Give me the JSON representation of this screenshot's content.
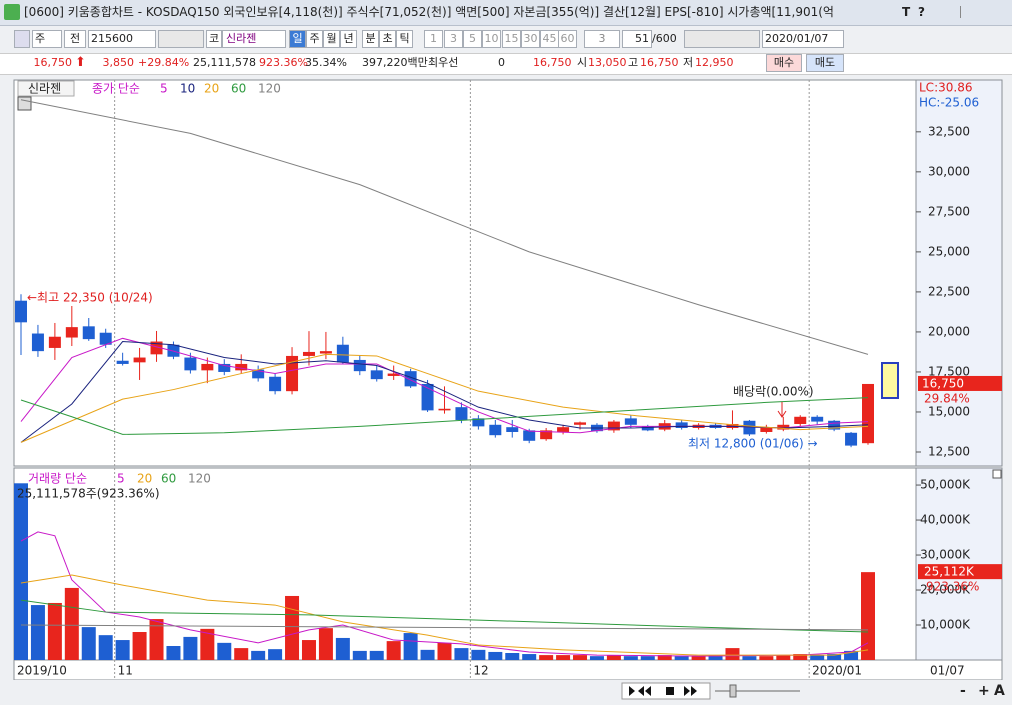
{
  "ui": {
    "title_bar": {
      "text": "[0600] 키움종합차트 - KOSDAQ150 외국인보유[4,118(천)] 주식수[71,052(천)] 액면[500] 자본금[355(억)] 결산[12월] EPS[-810] 시가총액[11,901(억",
      "buttons": [
        "T",
        "?"
      ]
    },
    "toolbar": {
      "period": "주",
      "all": "전",
      "code": "215600",
      "market": "코",
      "name": "신라젠",
      "tabs": [
        "일",
        "주",
        "월",
        "년",
        "분",
        "초",
        "틱"
      ],
      "intervals": [
        "1",
        "3",
        "5",
        "10",
        "15",
        "30",
        "45",
        "60"
      ],
      "multiplier": "3",
      "count": "51",
      "max_count": "/600",
      "date": "2020/01/07"
    },
    "info": {
      "price": "16,750",
      "change": "3,850",
      "change_rate": "+29.84%",
      "volume": "25,111,578",
      "volume_rate": "923.36%",
      "turnover": "35.34%",
      "amount": "397,220백만",
      "best_label": "최우선",
      "best_qty": "0",
      "best_price": "16,750",
      "open_label": "시",
      "open": "13,050",
      "high_label": "고",
      "high": "16,750",
      "low_label": "저",
      "low": "12,950",
      "buy": "매수",
      "sell": "매도"
    },
    "bottom_tools": [
      "-",
      "+",
      "A"
    ]
  },
  "chart_data": [
    {
      "type": "candlestick",
      "title": "신라젠",
      "legend_label": "종가 단순",
      "lc_label": "LC:30.86",
      "hc_label": "HC:-25.06",
      "current_label": "16,750",
      "change_label": "29.84%",
      "annotations": [
        "←최고 22,350 (10/24)",
        "배당락(0.00%)",
        "최저 12,800 (01/06) →"
      ],
      "up_color": "#e8251d",
      "down_color": "#1e5fd2",
      "open": [
        21950,
        19900,
        19000,
        19650,
        20350,
        19950,
        18200,
        18100,
        18600,
        19200,
        18400,
        17600,
        18000,
        17600,
        17650,
        17200,
        16300,
        18500,
        18650,
        19200,
        18250,
        17600,
        17250,
        17550,
        16750,
        15100,
        15300,
        14600,
        14200,
        14050,
        13850,
        13300,
        13750,
        14200,
        14200,
        13850,
        14600,
        14100,
        13900,
        14350,
        14000,
        14200,
        14000,
        14450,
        13750,
        13900,
        14250,
        14700,
        14450,
        13700,
        13050
      ],
      "high": [
        22350,
        20440,
        20560,
        21620,
        20870,
        20200,
        18700,
        19000,
        20060,
        19400,
        18700,
        18400,
        18300,
        18600,
        17900,
        17400,
        19050,
        20050,
        20000,
        19700,
        18500,
        17900,
        17900,
        17700,
        17000,
        16600,
        15600,
        14800,
        14500,
        14500,
        13950,
        14000,
        14200,
        14400,
        14300,
        14500,
        14800,
        14200,
        14500,
        14500,
        14300,
        14300,
        15100,
        14500,
        14200,
        14700,
        14800,
        14800,
        14500,
        13750,
        16750
      ],
      "low": [
        18560,
        18440,
        18250,
        19120,
        19440,
        19000,
        17900,
        17000,
        18130,
        18300,
        17400,
        16800,
        17300,
        17400,
        16900,
        16100,
        16100,
        17900,
        18300,
        18000,
        17300,
        16900,
        17000,
        16500,
        15000,
        14900,
        14300,
        13900,
        13400,
        13400,
        13050,
        13200,
        13600,
        13900,
        13700,
        13700,
        14000,
        13800,
        13800,
        13900,
        13900,
        13950,
        13900,
        13500,
        13650,
        13800,
        14100,
        14200,
        13800,
        12800,
        12950
      ],
      "close": [
        20600,
        18800,
        19700,
        20300,
        19550,
        19200,
        18000,
        18400,
        19400,
        18450,
        17600,
        18000,
        17500,
        18000,
        17100,
        16300,
        18500,
        18750,
        18800,
        18100,
        17550,
        17050,
        17400,
        16600,
        15100,
        15200,
        14500,
        14100,
        13550,
        13750,
        13200,
        13850,
        14050,
        14350,
        13800,
        14400,
        14200,
        13850,
        14300,
        14000,
        14200,
        14000,
        14250,
        13600,
        14050,
        14200,
        14700,
        14400,
        13900,
        12900,
        16750
      ],
      "series": [
        {
          "name": "5",
          "color": "#c818c8",
          "x": [
            0,
            3,
            6,
            9,
            12,
            15,
            18,
            21,
            24,
            27,
            30,
            33,
            36,
            39,
            42,
            45,
            48,
            50
          ],
          "values": [
            14400,
            18400,
            19600,
            18800,
            17900,
            17400,
            18000,
            18000,
            16500,
            15000,
            13800,
            13700,
            14100,
            14100,
            14100,
            14000,
            14300,
            14400
          ]
        },
        {
          "name": "10",
          "color": "#1a237e",
          "x": [
            0,
            3,
            6,
            9,
            12,
            15,
            18,
            21,
            24,
            27,
            30,
            33,
            36,
            39,
            42,
            45,
            48,
            50
          ],
          "values": [
            13100,
            15500,
            19400,
            19200,
            18400,
            18000,
            18200,
            17900,
            16800,
            15300,
            14500,
            14000,
            14000,
            14100,
            14100,
            14000,
            14100,
            14200
          ]
        },
        {
          "name": "20",
          "color": "#e8a317",
          "x": [
            0,
            6,
            9,
            13,
            18,
            21,
            24,
            27,
            32,
            36,
            42,
            46,
            50
          ],
          "values": [
            13100,
            15800,
            16400,
            17400,
            18600,
            18500,
            17400,
            16300,
            15300,
            14800,
            14200,
            13900,
            14100
          ]
        },
        {
          "name": "60",
          "color": "#2e9a3e",
          "x": [
            0,
            3,
            6,
            12,
            20,
            28,
            36,
            44,
            50
          ],
          "values": [
            15750,
            14700,
            13600,
            13700,
            14100,
            14600,
            15100,
            15600,
            15900
          ]
        },
        {
          "name": "120",
          "color": "#808080",
          "x": [
            0,
            10,
            20,
            30,
            40,
            50
          ],
          "values": [
            34500,
            32400,
            29200,
            25000,
            21700,
            18600
          ]
        }
      ],
      "ylim": [
        11875,
        34800
      ],
      "yticks": [
        {
          "value": 12500,
          "label": "12,500"
        },
        {
          "value": 15000,
          "label": "15,000"
        },
        {
          "value": 17500,
          "label": "17,500"
        },
        {
          "value": 20000,
          "label": "20,000"
        },
        {
          "value": 22500,
          "label": "22,500"
        },
        {
          "value": 25000,
          "label": "25,000"
        },
        {
          "value": 27500,
          "label": "27,500"
        },
        {
          "value": 30000,
          "label": "30,000"
        },
        {
          "value": 32500,
          "label": "32,500"
        }
      ]
    },
    {
      "type": "bar",
      "title": "거래량 단순",
      "info": "25,111,578주(923.36%)",
      "current_label": "25,112K",
      "change_label": "923.36%",
      "last_date_label": "01/07",
      "categories": [
        "2019/10",
        null,
        null,
        null,
        null,
        null,
        "11",
        null,
        null,
        null,
        null,
        null,
        null,
        null,
        null,
        null,
        null,
        null,
        null,
        null,
        null,
        null,
        null,
        null,
        null,
        null,
        null,
        "12",
        null,
        null,
        null,
        null,
        null,
        null,
        null,
        null,
        null,
        null,
        null,
        null,
        null,
        null,
        null,
        null,
        null,
        null,
        null,
        "2020/01",
        null,
        null,
        null
      ],
      "values": [
        50500,
        15700,
        16300,
        20600,
        9400,
        7100,
        5700,
        8000,
        11700,
        4000,
        6600,
        8900,
        4900,
        3400,
        2600,
        3100,
        18300,
        5700,
        9100,
        6300,
        2600,
        2600,
        5400,
        7700,
        2900,
        4900,
        3400,
        2900,
        2300,
        2000,
        1700,
        1400,
        1400,
        1400,
        1100,
        1400,
        1100,
        1100,
        1400,
        1100,
        1100,
        1100,
        3400,
        1100,
        1100,
        1400,
        1700,
        1400,
        1700,
        2600,
        25111.578
      ],
      "series": [
        {
          "name": "5",
          "color": "#c818c8",
          "x": [
            0,
            1,
            2,
            3,
            5,
            7,
            10,
            14,
            17,
            19,
            22,
            26,
            30,
            34,
            40,
            46,
            49,
            50
          ],
          "values": [
            34000,
            36600,
            35500,
            22900,
            13700,
            12300,
            8600,
            4900,
            8600,
            10000,
            5700,
            4600,
            2300,
            1400,
            1100,
            1400,
            2300,
            4900
          ]
        },
        {
          "name": "20",
          "color": "#e8a317",
          "x": [
            0,
            3,
            6,
            11,
            15,
            19,
            24,
            27,
            32,
            40,
            48,
            50
          ],
          "values": [
            22000,
            24300,
            21400,
            17100,
            15700,
            10900,
            7100,
            4300,
            2900,
            1400,
            1400,
            2900
          ]
        },
        {
          "name": "60",
          "color": "#2e9a3e",
          "x": [
            0,
            5,
            17,
            27,
            40,
            50
          ],
          "values": [
            17100,
            13700,
            12900,
            11400,
            9400,
            8000
          ]
        },
        {
          "name": "120",
          "color": "#808080",
          "x": [
            0,
            50
          ],
          "values": [
            10000,
            8600
          ]
        }
      ],
      "ylim": [
        0,
        54300
      ],
      "yticks": [
        {
          "value": 10000,
          "label": "10,000K"
        },
        {
          "value": 20000,
          "label": "20,000K"
        },
        {
          "value": 30000,
          "label": "30,000K"
        },
        {
          "value": 40000,
          "label": "40,000K"
        },
        {
          "value": 50000,
          "label": "50,000K"
        }
      ]
    }
  ]
}
